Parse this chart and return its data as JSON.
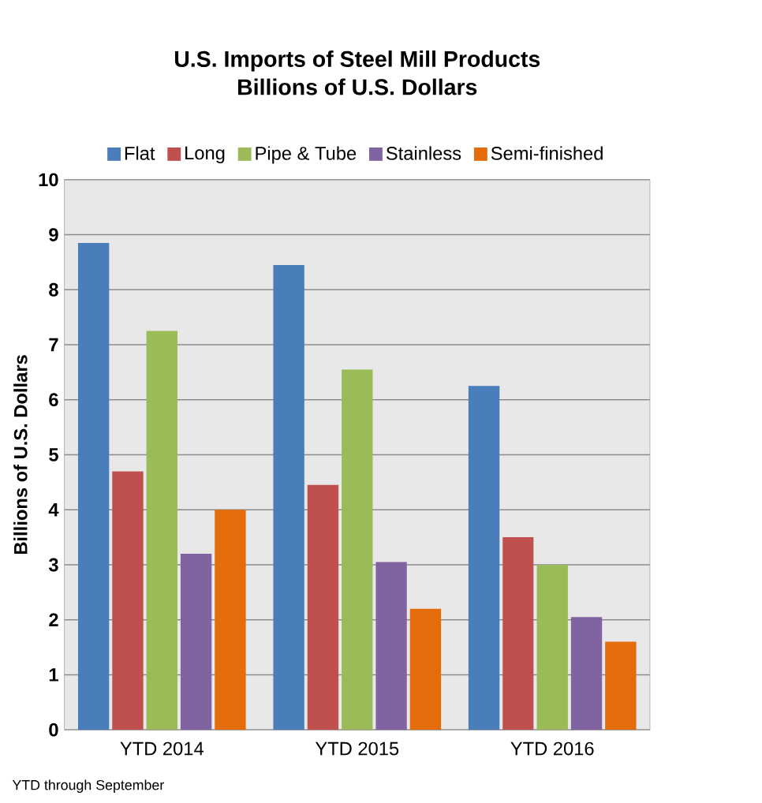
{
  "chart_data": {
    "type": "bar",
    "title": "U.S. Imports of Steel Mill Products\nBillions of U.S. Dollars",
    "ylabel": "Billions of U.S. Dollars",
    "categories": [
      "YTD 2014",
      "YTD 2015",
      "YTD 2016"
    ],
    "series": [
      {
        "name": "Flat",
        "color": "#4a7ebb",
        "values": [
          8.85,
          8.45,
          6.25
        ]
      },
      {
        "name": "Long",
        "color": "#c0504d",
        "values": [
          4.7,
          4.45,
          3.5
        ]
      },
      {
        "name": "Pipe & Tube",
        "color": "#9bbb59",
        "values": [
          7.25,
          6.55,
          3.0
        ]
      },
      {
        "name": "Stainless",
        "color": "#8064a2",
        "values": [
          3.2,
          3.05,
          2.05
        ]
      },
      {
        "name": "Semi-finished",
        "color": "#e46c0a",
        "values": [
          4.0,
          2.2,
          1.6
        ]
      }
    ],
    "ylim": [
      0,
      10
    ],
    "yticks": [
      0,
      1,
      2,
      3,
      4,
      5,
      6,
      7,
      8,
      9,
      10
    ],
    "grid": "y",
    "legend": "top",
    "annotations": [
      "YTD through September"
    ]
  }
}
